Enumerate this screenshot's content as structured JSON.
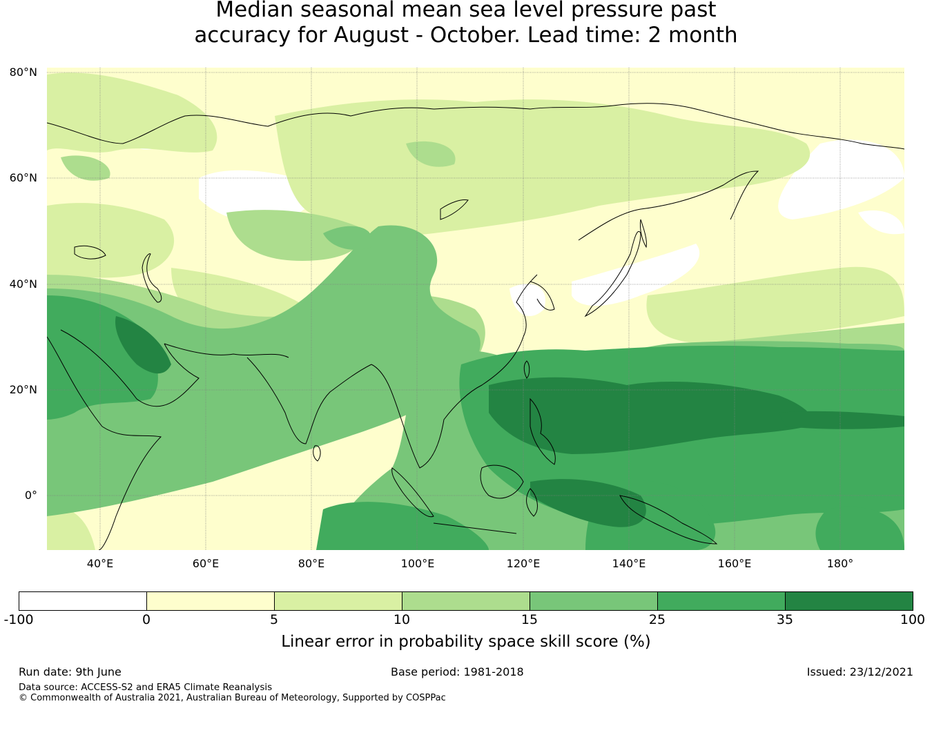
{
  "title": {
    "line1": "Median seasonal mean sea level pressure past",
    "line2": "accuracy for August - October. Lead time: 2 month"
  },
  "map": {
    "lat_labels": [
      "80°N",
      "60°N",
      "40°N",
      "20°N",
      "0°"
    ],
    "lon_labels": [
      "40°E",
      "60°E",
      "80°E",
      "100°E",
      "120°E",
      "140°E",
      "160°E",
      "180°"
    ]
  },
  "colorbar": {
    "label": "Linear error in probability space skill score (%)",
    "ticks": [
      "-100",
      "0",
      "5",
      "10",
      "15",
      "25",
      "35",
      "100"
    ],
    "colors": [
      "#ffffff",
      "#fefecd",
      "#d9f0a3",
      "#addd8e",
      "#78c679",
      "#41ab5d",
      "#238443"
    ]
  },
  "footer": {
    "run_date": "Run date: 9th June",
    "base_period": "Base period: 1981-2018",
    "issued": "Issued: 23/12/2021",
    "data_source": "Data source: ACCESS-S2 and ERA5 Climate Reanalysis",
    "copyright": "© Commonwealth of Australia 2021, Australian Bureau of Meteorology, Supported by COSPPac"
  }
}
